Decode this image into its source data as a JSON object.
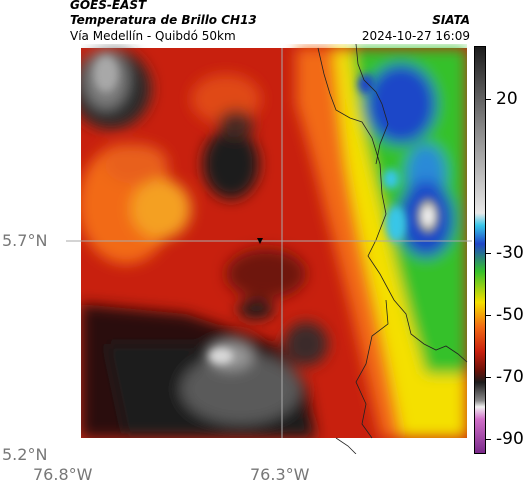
{
  "header": {
    "satellite": "GOES-EAST",
    "product": "Temperatura de Brillo CH13",
    "institution": "SIATA",
    "region": "Vía Medellín - Quibdó 50km",
    "datetime": "2024-10-27 16:09"
  },
  "axes": {
    "lat_labels": [
      "5.7°N",
      "5.2°N"
    ],
    "lon_labels": [
      "76.8°W",
      "76.3°W"
    ]
  },
  "colorbar": {
    "ticks": [
      "20",
      "-30",
      "-50",
      "-70",
      "-90"
    ],
    "tick_values": [
      20,
      -30,
      -50,
      -70,
      -90
    ],
    "range": [
      -95,
      37
    ]
  },
  "colors": {
    "red": "#c8200e",
    "dark_red": "#6e1208",
    "orange": "#f26a14",
    "yellow": "#f4e000",
    "green": "#36c12a",
    "blue": "#1f46c8",
    "cyan": "#38c6e8",
    "grey": "#8a8a8a",
    "dark": "#1c1c1c"
  }
}
